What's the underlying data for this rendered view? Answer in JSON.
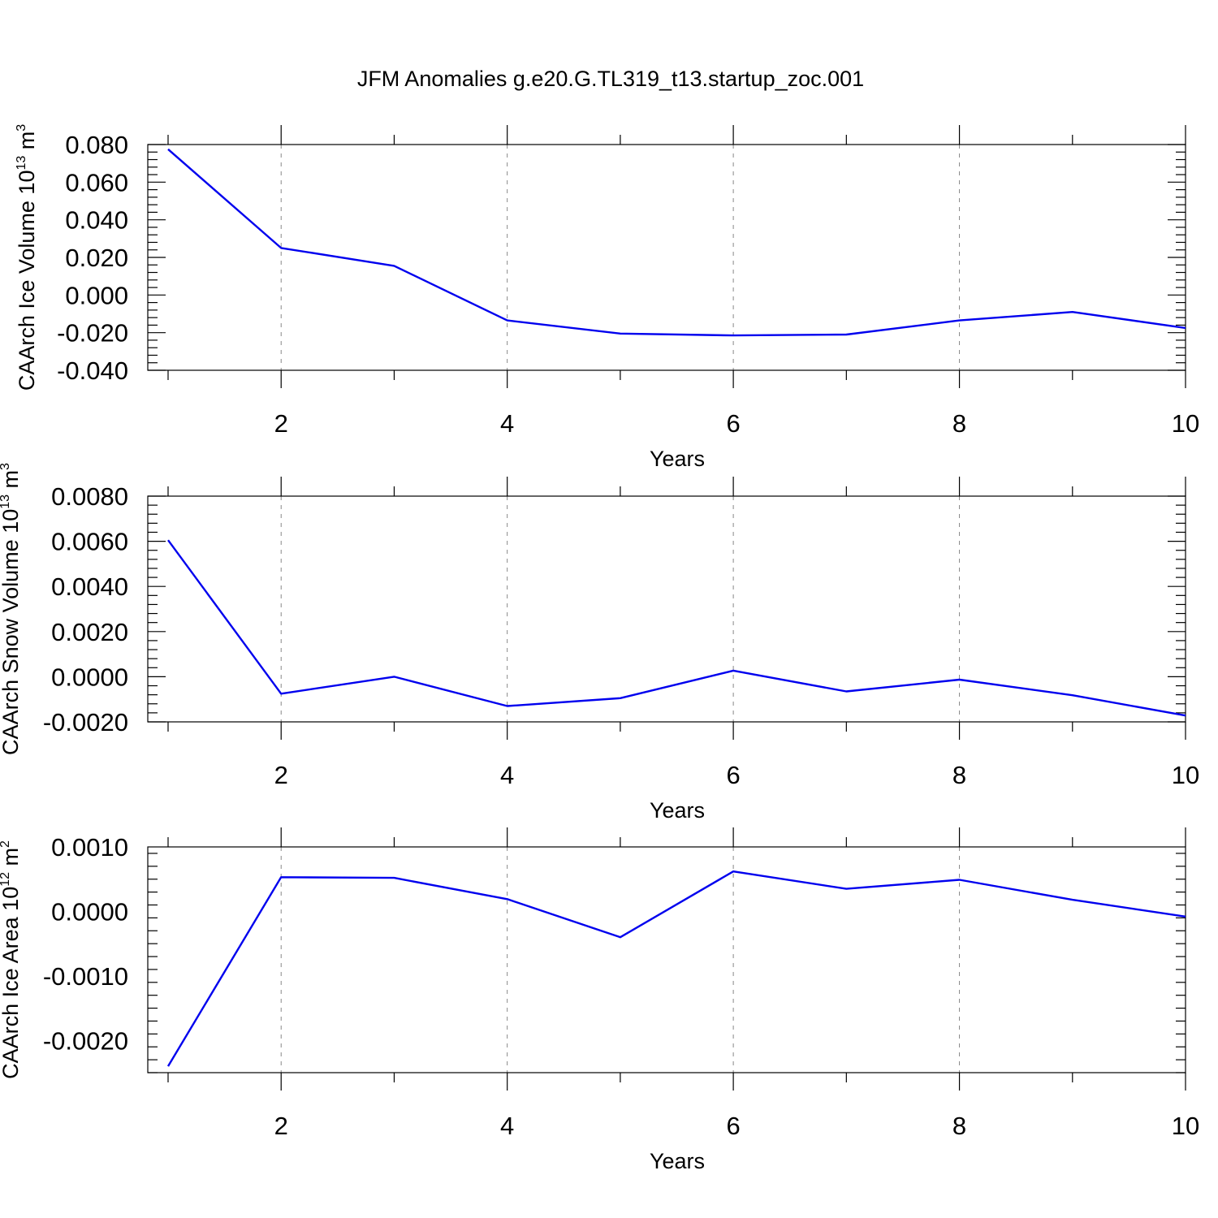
{
  "figure": {
    "title": "JFM Anomalies g.e20.G.TL319_t13.startup_zoc.001"
  },
  "chart_data": [
    {
      "type": "line",
      "ylabel_main": "CAArch Ice Volume 10",
      "ylabel_exp": "13",
      "ylabel_unit": " m",
      "ylabel_unit_exp": "3",
      "xlabel": "Years",
      "xlim": [
        1,
        10
      ],
      "ylim": [
        -0.04,
        0.08
      ],
      "xticks": [
        2,
        4,
        6,
        8,
        10
      ],
      "xtick_labels": [
        "2",
        "4",
        "6",
        "8",
        "10"
      ],
      "yticks": [
        -0.04,
        -0.02,
        0.0,
        0.02,
        0.04,
        0.06,
        0.08
      ],
      "ytick_labels": [
        "-0.040",
        "-0.020",
        "0.000",
        "0.020",
        "0.040",
        "0.060",
        "0.080"
      ],
      "series": [
        {
          "color": "#0000ee",
          "x": [
            1,
            2,
            3,
            4,
            5,
            6,
            7,
            8,
            9,
            10
          ],
          "values": [
            0.0775,
            0.025,
            0.0155,
            -0.0135,
            -0.0205,
            -0.0215,
            -0.021,
            -0.0135,
            -0.009,
            -0.0175
          ]
        }
      ]
    },
    {
      "type": "line",
      "ylabel_main": "CAArch Snow Volume 10",
      "ylabel_exp": "13",
      "ylabel_unit": " m",
      "ylabel_unit_exp": "3",
      "xlabel": "Years",
      "xlim": [
        1,
        10
      ],
      "ylim": [
        -0.002,
        0.008
      ],
      "xticks": [
        2,
        4,
        6,
        8,
        10
      ],
      "xtick_labels": [
        "2",
        "4",
        "6",
        "8",
        "10"
      ],
      "yticks": [
        -0.002,
        0.0,
        0.002,
        0.004,
        0.006,
        0.008
      ],
      "ytick_labels": [
        "-0.0020",
        "0.0000",
        "0.0020",
        "0.0040",
        "0.0060",
        "0.0080"
      ],
      "series": [
        {
          "color": "#0000ee",
          "x": [
            1,
            2,
            3,
            4,
            5,
            6,
            7,
            8,
            9,
            10
          ],
          "values": [
            0.00605,
            -0.00075,
            0.0,
            -0.0013,
            -0.00095,
            0.00027,
            -0.00065,
            -0.00013,
            -0.00082,
            -0.00172
          ]
        }
      ]
    },
    {
      "type": "line",
      "ylabel_main": "CAArch Ice Area 10",
      "ylabel_exp": "12",
      "ylabel_unit": " m",
      "ylabel_unit_exp": "2",
      "xlabel": "Years",
      "xlim": [
        1,
        10
      ],
      "ylim": [
        -0.0025,
        0.001
      ],
      "xticks": [
        2,
        4,
        6,
        8,
        10
      ],
      "xtick_labels": [
        "2",
        "4",
        "6",
        "8",
        "10"
      ],
      "yticks": [
        -0.002,
        -0.001,
        0.0,
        0.001
      ],
      "ytick_labels": [
        "-0.0020",
        "-0.0010",
        "0.0000",
        "0.0010"
      ],
      "series": [
        {
          "color": "#0000ee",
          "x": [
            1,
            2,
            3,
            4,
            5,
            6,
            7,
            8,
            9,
            10
          ],
          "values": [
            -0.0024,
            0.00053,
            0.00052,
            0.00019,
            -0.0004,
            0.00062,
            0.00035,
            0.00049,
            0.00018,
            -8e-05
          ]
        }
      ]
    }
  ]
}
